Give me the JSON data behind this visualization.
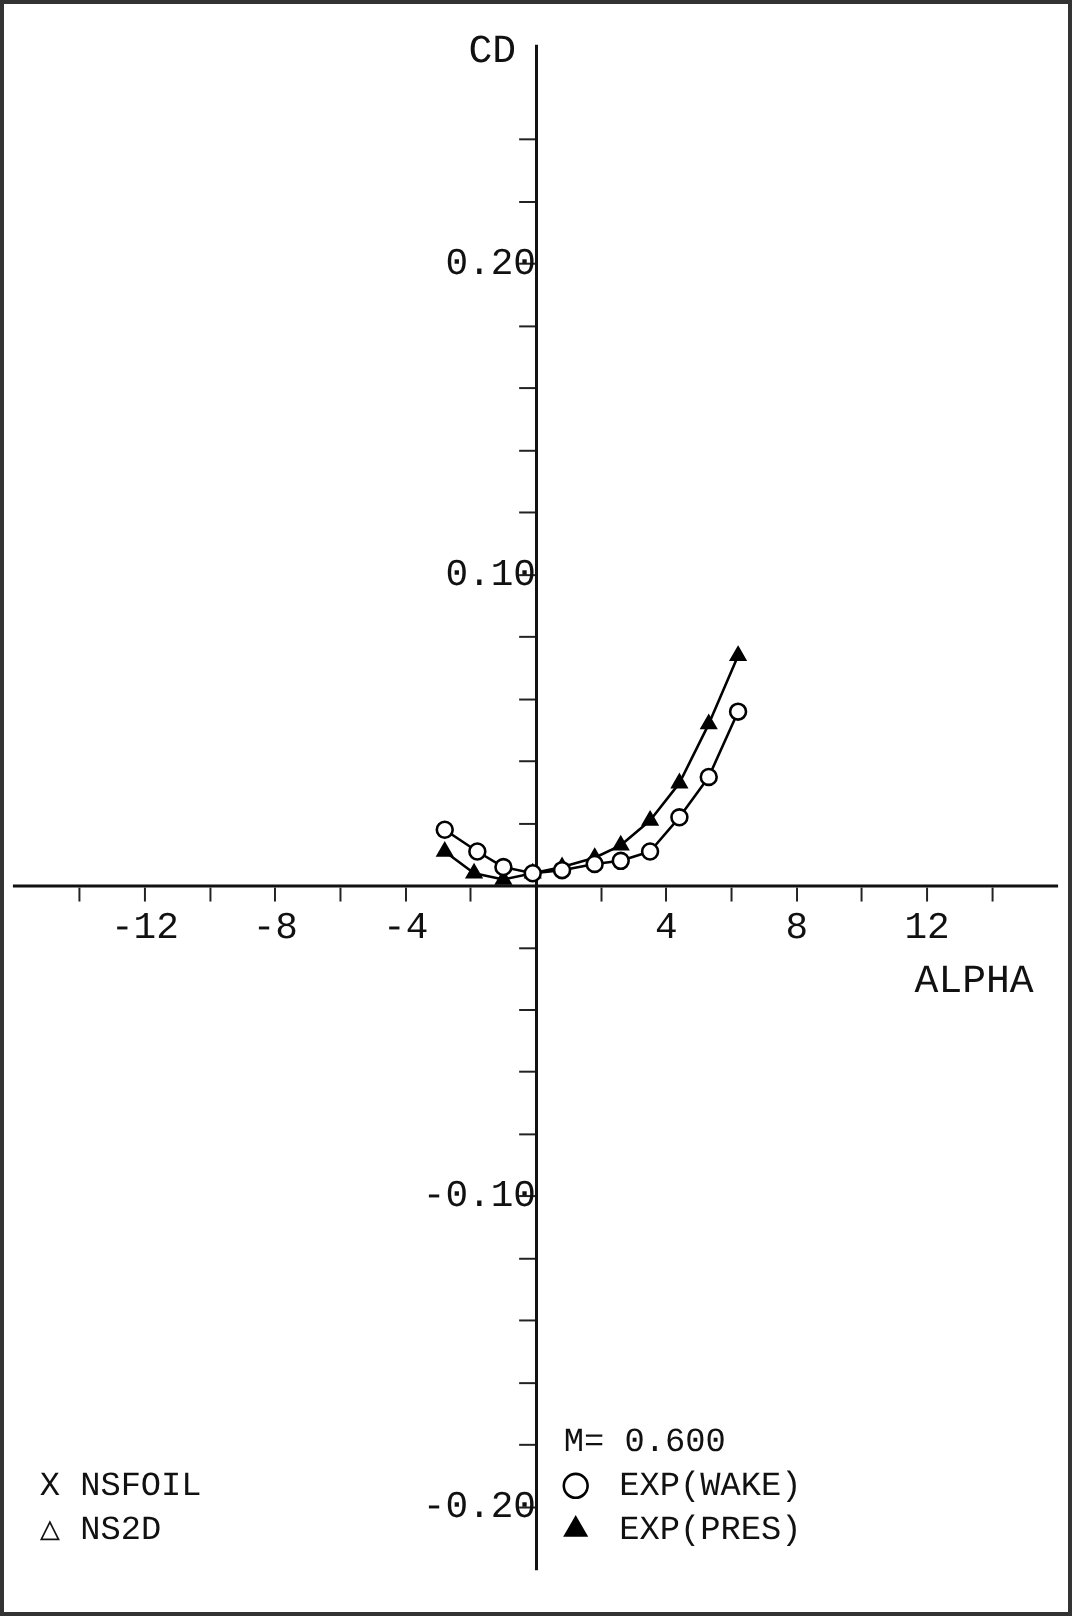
{
  "chart_data": {
    "type": "line",
    "xlabel": "ALPHA",
    "ylabel": "CD",
    "xlim": [
      -16,
      16
    ],
    "xticks": [
      {
        "value": -14,
        "label": null
      },
      -12,
      {
        "value": -10,
        "label": null
      },
      -8,
      {
        "value": -6,
        "label": null
      },
      -4,
      {
        "value": -2,
        "label": null
      },
      {
        "value": 0,
        "label": null
      },
      {
        "value": 2,
        "label": null
      },
      4,
      {
        "value": 6,
        "label": null
      },
      8,
      {
        "value": 10,
        "label": null
      },
      12,
      {
        "value": 14,
        "label": null
      }
    ],
    "ylim": [
      -0.22,
      0.27
    ],
    "yticks": [
      {
        "value": -0.2,
        "label": "-0.20"
      },
      {
        "value": -0.18,
        "label": null
      },
      {
        "value": -0.16,
        "label": null
      },
      {
        "value": -0.14,
        "label": null
      },
      {
        "value": -0.12,
        "label": null
      },
      {
        "value": -0.1,
        "label": "-0.10"
      },
      {
        "value": -0.08,
        "label": null
      },
      {
        "value": -0.06,
        "label": null
      },
      {
        "value": -0.04,
        "label": null
      },
      {
        "value": -0.02,
        "label": null
      },
      {
        "value": 0.02,
        "label": null
      },
      {
        "value": 0.04,
        "label": null
      },
      {
        "value": 0.06,
        "label": null
      },
      {
        "value": 0.08,
        "label": null
      },
      {
        "value": 0.1,
        "label": "0.10"
      },
      {
        "value": 0.12,
        "label": null
      },
      {
        "value": 0.14,
        "label": null
      },
      {
        "value": 0.16,
        "label": null
      },
      {
        "value": 0.18,
        "label": null
      },
      {
        "value": 0.2,
        "label": "0.20"
      },
      {
        "value": 0.22,
        "label": null
      },
      {
        "value": 0.24,
        "label": null
      }
    ],
    "grid": false,
    "legend": "bottom right",
    "series": [
      {
        "name": "EXP(WAKE)",
        "color": "#000000",
        "marker": "circle",
        "x": [
          -2.8,
          -1.8,
          -1.0,
          -0.1,
          0.8,
          1.8,
          2.6,
          3.5,
          4.4,
          5.3,
          6.2
        ],
        "values": [
          0.018,
          0.011,
          0.006,
          0.004,
          0.005,
          0.007,
          0.008,
          0.011,
          0.022,
          0.035,
          0.056
        ]
      },
      {
        "name": "EXP(PRES)",
        "color": "#000000",
        "marker": "triangle",
        "x": [
          -2.8,
          -1.9,
          -1.0,
          -0.1,
          0.8,
          1.8,
          2.6,
          3.5,
          4.4,
          5.3,
          6.2
        ],
        "values": [
          0.011,
          0.004,
          0.002,
          0.004,
          0.006,
          0.009,
          0.013,
          0.021,
          0.033,
          0.052,
          0.074
        ]
      }
    ],
    "annotations": [
      "M= 0.600",
      "X NSFOIL",
      "△ NS2D"
    ]
  }
}
